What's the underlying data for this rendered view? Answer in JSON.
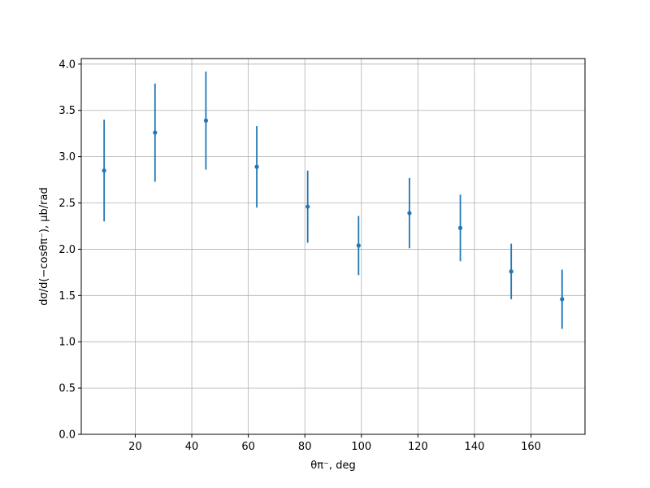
{
  "chart_data": {
    "type": "errorbar",
    "x_label": "θπ⁻, deg",
    "y_label": "dσ/d(−cosθπ⁻), μb/rad",
    "x": [
      9,
      27,
      45,
      63,
      81,
      99,
      117,
      135,
      153,
      171
    ],
    "series": [
      {
        "color": "#1f77b4",
        "values": [
          2.85,
          3.26,
          3.39,
          2.89,
          2.46,
          2.04,
          2.39,
          2.23,
          1.76,
          1.46
        ],
        "errors": [
          0.55,
          0.53,
          0.53,
          0.44,
          0.39,
          0.32,
          0.38,
          0.36,
          0.3,
          0.32
        ]
      }
    ],
    "xlim": [
      0.9,
      179.1
    ],
    "xticks": [
      20,
      40,
      60,
      80,
      100,
      120,
      140,
      160
    ],
    "ylim": [
      0,
      4.06
    ],
    "yticks": [
      {
        "value": 0,
        "label": "0.0"
      },
      {
        "value": 0.5,
        "label": "0.5"
      },
      {
        "value": 1,
        "label": "1.0"
      },
      {
        "value": 1.5,
        "label": "1.5"
      },
      {
        "value": 2,
        "label": "2.0"
      },
      {
        "value": 2.5,
        "label": "2.5"
      },
      {
        "value": 3,
        "label": "3.0"
      },
      {
        "value": 3.5,
        "label": "3.5"
      },
      {
        "value": 4,
        "label": "4.0"
      }
    ],
    "grid": true
  }
}
